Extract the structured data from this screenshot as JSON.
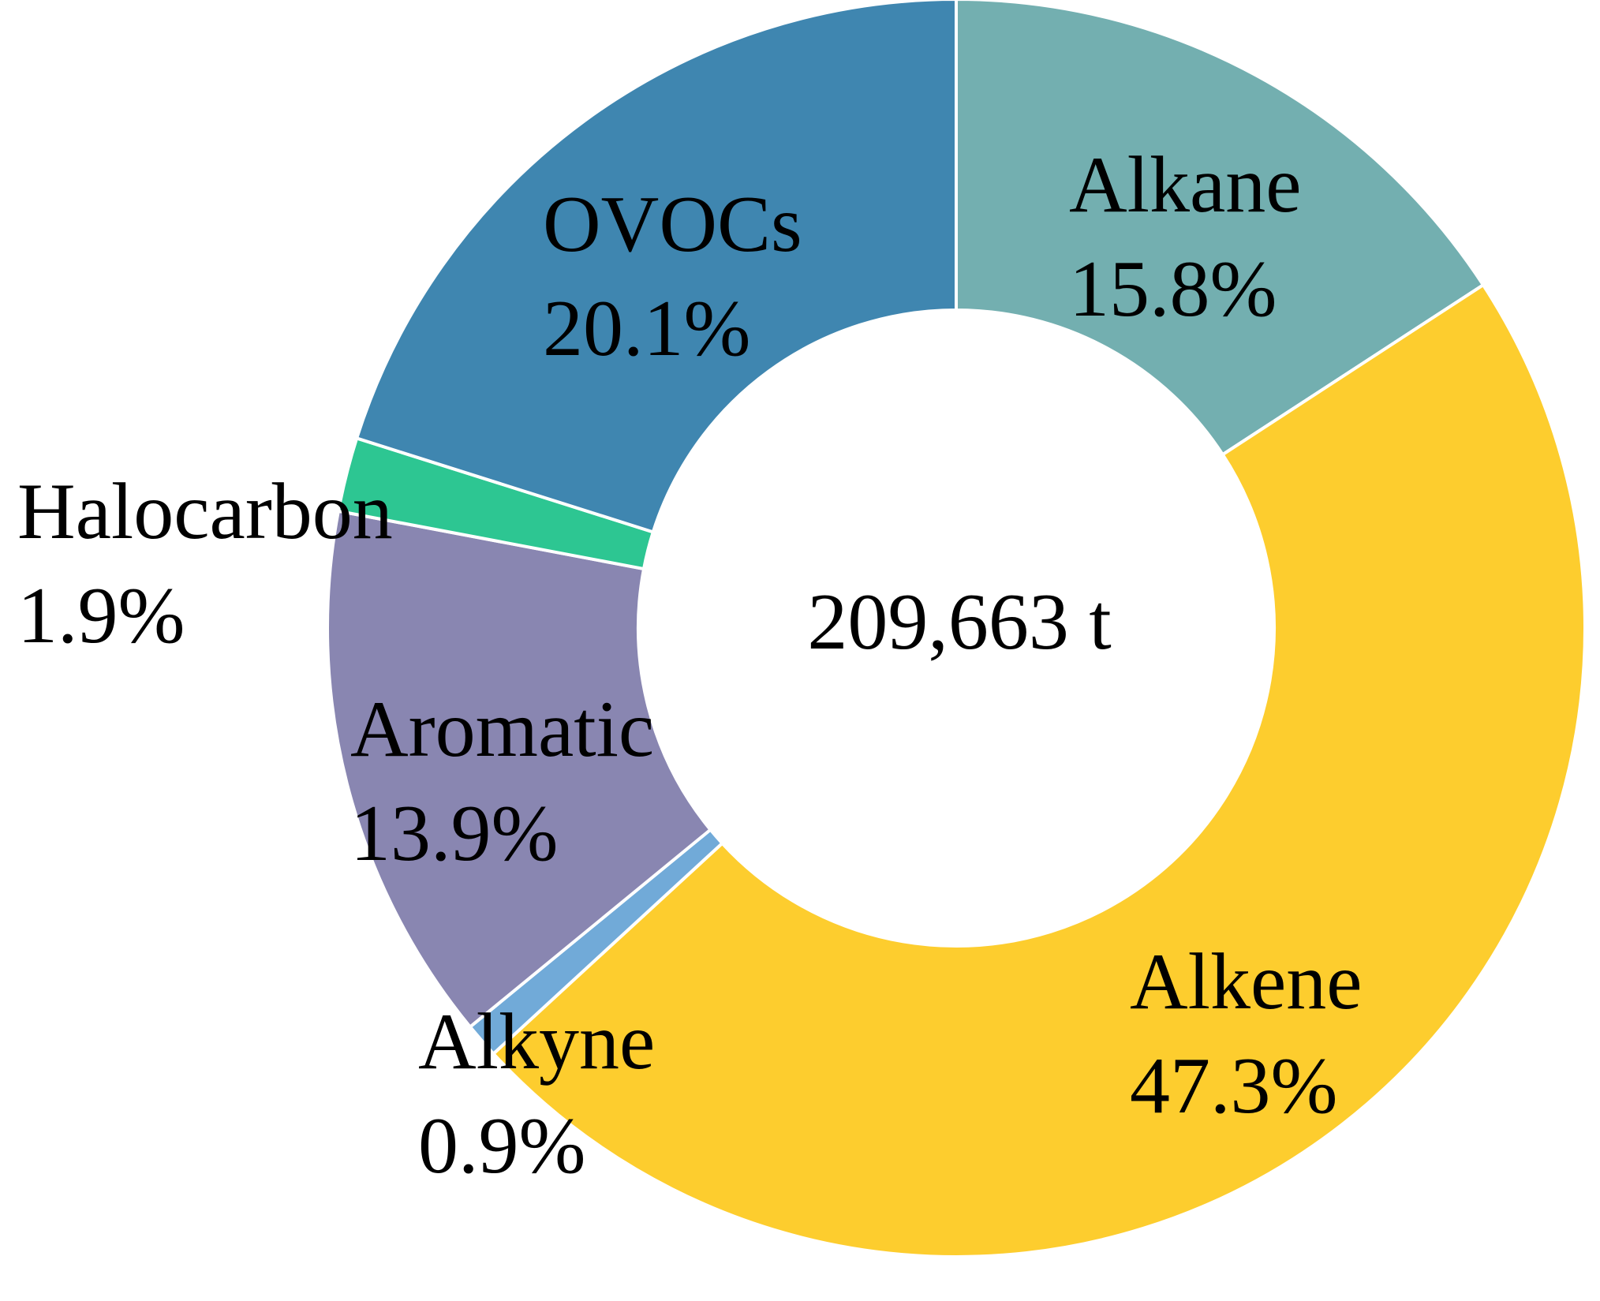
{
  "chart_data": {
    "type": "pie",
    "donut": true,
    "center_text": "209,663 t",
    "slices": [
      {
        "name": "Alkane",
        "pct_label": "15.8%",
        "value": 15.8,
        "color": "#73AFB0"
      },
      {
        "name": "Alkene",
        "pct_label": "47.3%",
        "value": 47.3,
        "color": "#FDCD2E"
      },
      {
        "name": "Alkyne",
        "pct_label": "0.9%",
        "value": 0.9,
        "color": "#71AAD8"
      },
      {
        "name": "Aromatic",
        "pct_label": "13.9%",
        "value": 13.9,
        "color": "#8986B1"
      },
      {
        "name": "Halocarbon",
        "pct_label": "1.9%",
        "value": 1.9,
        "color": "#2DC692"
      },
      {
        "name": "OVOCs",
        "pct_label": "20.1%",
        "value": 20.1,
        "color": "#3F86B0"
      }
    ],
    "start_angle": "12 o'clock",
    "direction": "clockwise"
  }
}
